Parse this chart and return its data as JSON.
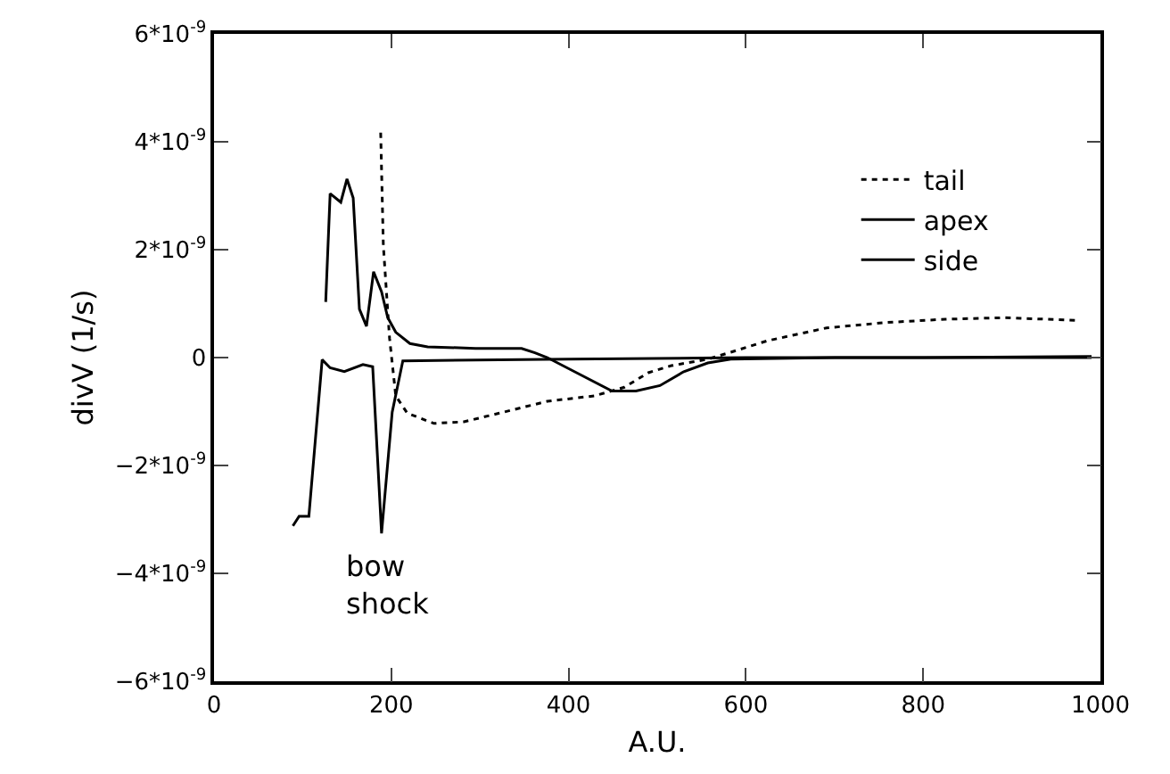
{
  "chart_data": {
    "type": "line",
    "xlabel": "A.U.",
    "ylabel": "divV (1/s)",
    "xlim": [
      0,
      1000
    ],
    "xticks": [
      0,
      200,
      400,
      600,
      800,
      1000
    ],
    "ylim": [
      -6e-09,
      6e-09
    ],
    "yticks": [
      {
        "value": -6e-09,
        "label": "−6*10$^{-9}$"
      },
      {
        "value": -4e-09,
        "label": "−4*10$^{-9}$"
      },
      {
        "value": -2e-09,
        "label": "−2*10$^{-9}$"
      },
      {
        "value": 0,
        "label": "0"
      },
      {
        "value": 2e-09,
        "label": "2*10$^{-9}$"
      },
      {
        "value": 4e-09,
        "label": "4*10$^{-9}$"
      },
      {
        "value": 6e-09,
        "label": "6*10$^{-9}$"
      }
    ],
    "grid": false,
    "legend": "top right",
    "marker": "none",
    "annotations": [
      "bow\nshock"
    ],
    "series": [
      {
        "name": "tail",
        "color": "#000000",
        "line_style": "dotted",
        "x": [
          188,
          191,
          198,
          205,
          218,
          248,
          282,
          322,
          376,
          429,
          463,
          490,
          516,
          557,
          583,
          624,
          691,
          758,
          825,
          892,
          972
        ],
        "values": [
          4.17e-09,
          2.08e-09,
          3.6e-10,
          -7.1e-10,
          -1.03e-09,
          -1.22e-09,
          -1.19e-09,
          -1.03e-09,
          -8.1e-10,
          -7.1e-10,
          -5.5e-10,
          -2.8e-10,
          -1.5e-10,
          -3e-11,
          1e-10,
          3.1e-10,
          5.5e-10,
          6.5e-10,
          7.1e-10,
          7.4e-10,
          6.9e-10
        ]
      },
      {
        "name": "apex",
        "color": "#000000",
        "line_style": "solid",
        "x": [
          89,
          96,
          107,
          122,
          131,
          147,
          168,
          179,
          189,
          201,
          213,
          400,
          600,
          800,
          990
        ],
        "values": [
          -3.12e-09,
          -2.94e-09,
          -2.94e-09,
          -4e-11,
          -1.9e-10,
          -2.6e-10,
          -1.3e-10,
          -1.7e-10,
          -3.26e-09,
          -1.01e-09,
          -6e-11,
          -3e-11,
          0,
          0,
          2e-11
        ]
      },
      {
        "name": "side",
        "color": "#000000",
        "line_style": "solid",
        "x": [
          126,
          131,
          143,
          150,
          157,
          164,
          172,
          180,
          189,
          196,
          205,
          221,
          241,
          295,
          347,
          362,
          376,
          449,
          476,
          503,
          530,
          557,
          583,
          700,
          990
        ],
        "values": [
          1.03e-09,
          3.04e-09,
          2.88e-09,
          3.31e-09,
          2.96e-09,
          9e-10,
          5.8e-10,
          1.59e-09,
          1.22e-09,
          7.4e-10,
          4.7e-10,
          2.6e-10,
          2e-10,
          1.7e-10,
          1.7e-10,
          9e-11,
          0,
          -6.2e-10,
          -6.2e-10,
          -5.2e-10,
          -2.6e-10,
          -1e-10,
          -3e-11,
          0,
          0
        ]
      }
    ]
  }
}
